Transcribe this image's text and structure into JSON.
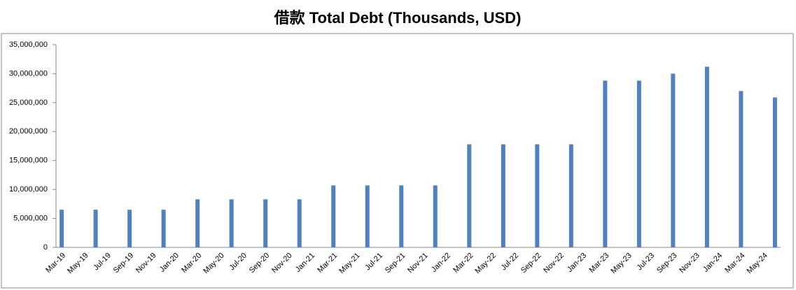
{
  "chart_data": {
    "type": "bar",
    "title": "借款 Total Debt (Thousands, USD)",
    "categories": [
      "Mar-19",
      null,
      "May-19",
      null,
      "Jul-19",
      null,
      "Sep-19",
      null,
      "Nov-19",
      null,
      "Jan-20",
      null,
      "Mar-20",
      null,
      "May-20",
      null,
      "Jul-20",
      null,
      "Sep-20",
      null,
      "Nov-20",
      null,
      "Jan-21",
      null,
      "Mar-21",
      null,
      "May-21",
      null,
      "Jul-21",
      null,
      "Sep-21",
      null,
      "Nov-21",
      null,
      "Jan-22",
      null,
      "Mar-22",
      null,
      "May-22",
      null,
      "Jul-22",
      null,
      "Sep-22",
      null,
      "Nov-22",
      null,
      "Jan-23",
      null,
      "Mar-23",
      null,
      "May-23",
      null,
      "Jul-23",
      null,
      "Sep-23",
      null,
      "Nov-23",
      null,
      "Jan-24",
      null,
      "Mar-24",
      null,
      "May-24",
      null
    ],
    "values": [
      6500000,
      null,
      null,
      6500000,
      null,
      null,
      6500000,
      null,
      null,
      6500000,
      null,
      null,
      8300000,
      null,
      null,
      8300000,
      null,
      null,
      8300000,
      null,
      null,
      8300000,
      null,
      null,
      10700000,
      null,
      null,
      10700000,
      null,
      null,
      10700000,
      null,
      null,
      10700000,
      null,
      null,
      17800000,
      null,
      null,
      17800000,
      null,
      null,
      17800000,
      null,
      null,
      17800000,
      null,
      null,
      28800000,
      null,
      null,
      28800000,
      null,
      null,
      30000000,
      null,
      null,
      31200000,
      null,
      null,
      27000000,
      null,
      null,
      25900000
    ],
    "color": "#4f81bd",
    "ylim": [
      0,
      35000000
    ],
    "yticks": [
      0,
      {
        "value": 5000000,
        "label": "5,000,000"
      },
      {
        "value": 10000000,
        "label": "10,000,000"
      },
      {
        "value": 15000000,
        "label": "15,000,000"
      },
      {
        "value": 20000000,
        "label": "20,000,000"
      },
      {
        "value": 25000000,
        "label": "25,000,000"
      },
      {
        "value": 30000000,
        "label": "30,000,000"
      },
      {
        "value": 35000000,
        "label": "35,000,000"
      }
    ],
    "grid": false
  }
}
